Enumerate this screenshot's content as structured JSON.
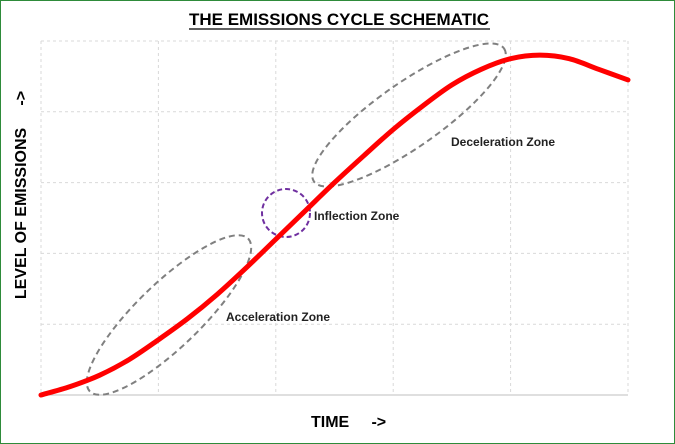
{
  "chart_data": {
    "type": "line",
    "title": "THE EMISSIONS CYCLE SCHEMATIC",
    "xlabel": "TIME     ->",
    "ylabel": "LEVEL OF EMISSIONS     ->",
    "xlim": [
      0,
      10
    ],
    "ylim": [
      0,
      5
    ],
    "grid": true,
    "series": [
      {
        "color": "#ff0000",
        "points": [
          [
            0.0,
            0.0
          ],
          [
            0.5,
            0.12
          ],
          [
            1.0,
            0.28
          ],
          [
            1.5,
            0.5
          ],
          [
            2.0,
            0.78
          ],
          [
            2.5,
            1.08
          ],
          [
            3.0,
            1.42
          ],
          [
            3.5,
            1.8
          ],
          [
            4.0,
            2.2
          ],
          [
            4.5,
            2.6
          ],
          [
            5.0,
            3.0
          ],
          [
            5.5,
            3.38
          ],
          [
            6.0,
            3.75
          ],
          [
            6.5,
            4.08
          ],
          [
            7.0,
            4.38
          ],
          [
            7.5,
            4.6
          ],
          [
            8.0,
            4.75
          ],
          [
            8.5,
            4.8
          ],
          [
            9.0,
            4.75
          ],
          [
            9.5,
            4.6
          ],
          [
            10.0,
            4.45
          ]
        ]
      }
    ],
    "annotations": [
      {
        "text": "Acceleration Zone",
        "shape": "dashed-ellipse",
        "color": "#808080"
      },
      {
        "text": "Inflection Zone",
        "shape": "dashed-circle",
        "color": "#7030a0"
      },
      {
        "text": "Deceleration Zone",
        "shape": "dashed-ellipse",
        "color": "#808080"
      }
    ]
  }
}
